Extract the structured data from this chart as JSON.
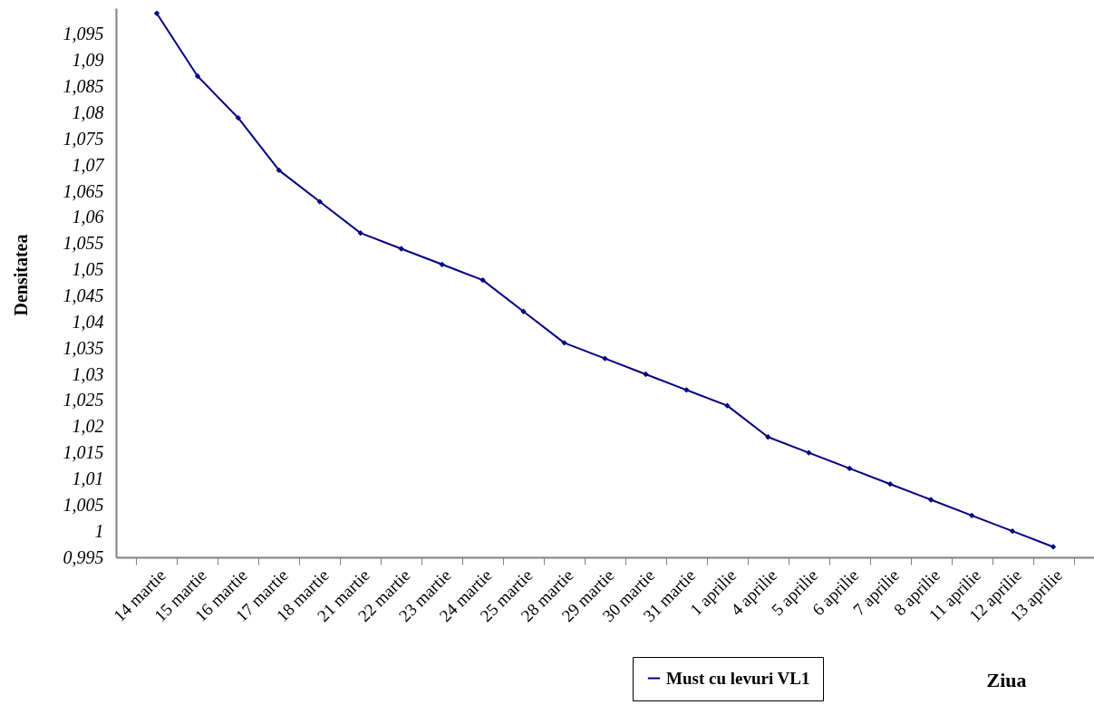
{
  "chart_data": {
    "type": "line",
    "xlabel": "Ziua",
    "ylabel": "Densitatea",
    "categories": [
      "14 martie",
      "15 martie",
      "16 martie",
      "17 martie",
      "18 martie",
      "21 martie",
      "22 martie",
      "23 martie",
      "24 martie",
      "25 martie",
      "28 martie",
      "29 martie",
      "30 martie",
      "31 martie",
      "1 aprilie",
      "4 aprilie",
      "5 aprilie",
      "6 aprilie",
      "7 aprilie",
      "8 aprilie",
      "11 aprilie",
      "12 aprilie",
      "13 aprilie"
    ],
    "series": [
      {
        "name": "Must cu levuri VL1",
        "color": "#000080",
        "values": [
          1.099,
          1.087,
          1.079,
          1.069,
          1.063,
          1.057,
          1.054,
          1.051,
          1.048,
          1.042,
          1.036,
          1.033,
          1.03,
          1.027,
          1.024,
          1.018,
          1.015,
          1.012,
          1.009,
          1.006,
          1.003,
          1.0,
          0.997
        ]
      }
    ],
    "ylim": [
      0.995,
      1.1
    ],
    "yticks": [
      {
        "value": 0.995,
        "label": "0,995"
      },
      1,
      {
        "value": 1.005,
        "label": "1,005"
      },
      {
        "value": 1.01,
        "label": "1,01"
      },
      {
        "value": 1.015,
        "label": "1,015"
      },
      {
        "value": 1.02,
        "label": "1,02"
      },
      {
        "value": 1.025,
        "label": "1,025"
      },
      {
        "value": 1.03,
        "label": "1,03"
      },
      {
        "value": 1.035,
        "label": "1,035"
      },
      {
        "value": 1.04,
        "label": "1,04"
      },
      {
        "value": 1.045,
        "label": "1,045"
      },
      {
        "value": 1.05,
        "label": "1,05"
      },
      {
        "value": 1.055,
        "label": "1,055"
      },
      {
        "value": 1.06,
        "label": "1,06"
      },
      {
        "value": 1.065,
        "label": "1,065"
      },
      {
        "value": 1.07,
        "label": "1,07"
      },
      {
        "value": 1.075,
        "label": "1,075"
      },
      {
        "value": 1.08,
        "label": "1,08"
      },
      {
        "value": 1.085,
        "label": "1,085"
      },
      {
        "value": 1.09,
        "label": "1,09"
      },
      {
        "value": 1.095,
        "label": "1,095"
      }
    ],
    "grid": false,
    "legend": "bottom",
    "marker": "diamond",
    "line_style": "solid"
  }
}
